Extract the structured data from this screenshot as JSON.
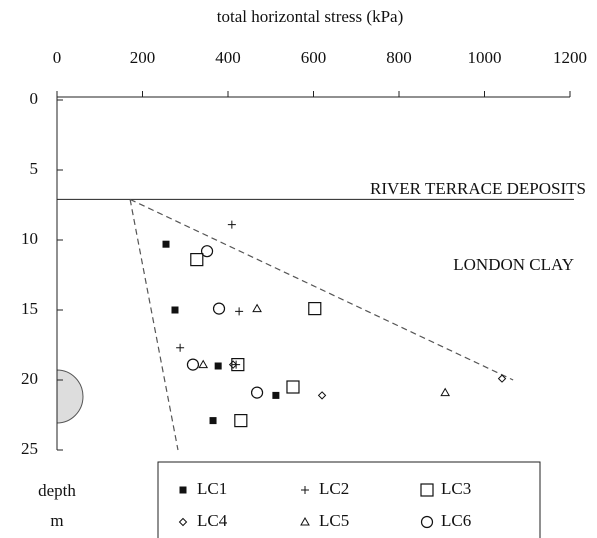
{
  "chart_data": {
    "type": "scatter",
    "xlabel": "total horizontal stress (kPa)",
    "ylabel": "depth",
    "ylabel_unit": "m",
    "xlim": [
      0,
      1200
    ],
    "xticks": [
      0,
      200,
      400,
      600,
      800,
      1000,
      1200
    ],
    "ylim": [
      0,
      25
    ],
    "yticks": [
      0,
      5,
      10,
      15,
      20,
      25
    ],
    "y_inverted": true,
    "x_axis_position": "top",
    "boundary_depth": 7.1,
    "annotations": [
      {
        "text": "RIVER TERRACE DEPOSITS"
      },
      {
        "text": "LONDON CLAY"
      }
    ],
    "trend_lines": [
      {
        "x": [
          171,
          1067
        ],
        "y": [
          7.1,
          20.0
        ]
      },
      {
        "x": [
          171,
          283
        ],
        "y": [
          7.1,
          25
        ]
      }
    ],
    "series": [
      {
        "name": "LC1",
        "marker": "square-filled",
        "color": "#111",
        "x": [
          255,
          276,
          377,
          512,
          365
        ],
        "values": [
          10.3,
          15,
          19,
          21.1,
          22.9
        ]
      },
      {
        "name": "LC2",
        "marker": "plus",
        "color": "#111",
        "x": [
          409,
          426,
          288,
          419
        ],
        "values": [
          8.9,
          15.1,
          17.7,
          18.9
        ]
      },
      {
        "name": "LC3",
        "marker": "square",
        "color": "#111",
        "x": [
          327,
          603,
          423,
          552,
          430
        ],
        "values": [
          11.4,
          14.9,
          18.9,
          20.5,
          22.9
        ]
      },
      {
        "name": "LC4",
        "marker": "diamond",
        "color": "#111",
        "x": [
          412,
          620,
          1041
        ],
        "values": [
          18.9,
          21.1,
          19.9
        ]
      },
      {
        "name": "LC5",
        "marker": "triangle",
        "color": "#111",
        "x": [
          468,
          342,
          908
        ],
        "values": [
          14.9,
          18.9,
          20.9
        ]
      },
      {
        "name": "LC6",
        "marker": "circle",
        "color": "#111",
        "x": [
          351,
          379,
          318,
          468
        ],
        "values": [
          10.8,
          14.9,
          18.9,
          20.9
        ]
      }
    ]
  }
}
